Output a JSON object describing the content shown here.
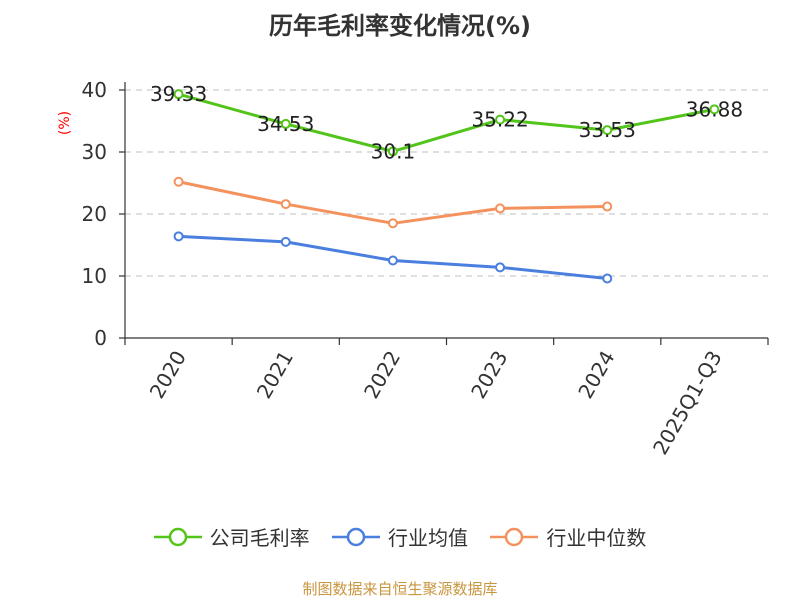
{
  "title": "历年毛利率变化情况(%)",
  "source": "制图数据来自恒生聚源数据库",
  "chart_data": {
    "type": "line",
    "title": "历年毛利率变化情况(%)",
    "ylabel": "(%)",
    "ylim": [
      0,
      40
    ],
    "yticks": [
      0,
      10,
      20,
      30,
      40
    ],
    "grid": true,
    "legend_position": "bottom",
    "categories": [
      "2020",
      "2021",
      "2022",
      "2023",
      "2024",
      "2025Q1-Q3"
    ],
    "series": [
      {
        "name": "公司毛利率",
        "color": "#52c41a",
        "values": [
          39.33,
          34.53,
          30.1,
          35.22,
          33.53,
          36.88
        ],
        "show_labels": true
      },
      {
        "name": "行业均值",
        "color": "#4a7fe0",
        "values": [
          16.4,
          15.5,
          12.5,
          11.4,
          9.6,
          null
        ],
        "show_labels": false
      },
      {
        "name": "行业中位数",
        "color": "#f4925e",
        "values": [
          25.2,
          21.6,
          18.5,
          20.9,
          21.2,
          null
        ],
        "show_labels": false
      }
    ]
  }
}
